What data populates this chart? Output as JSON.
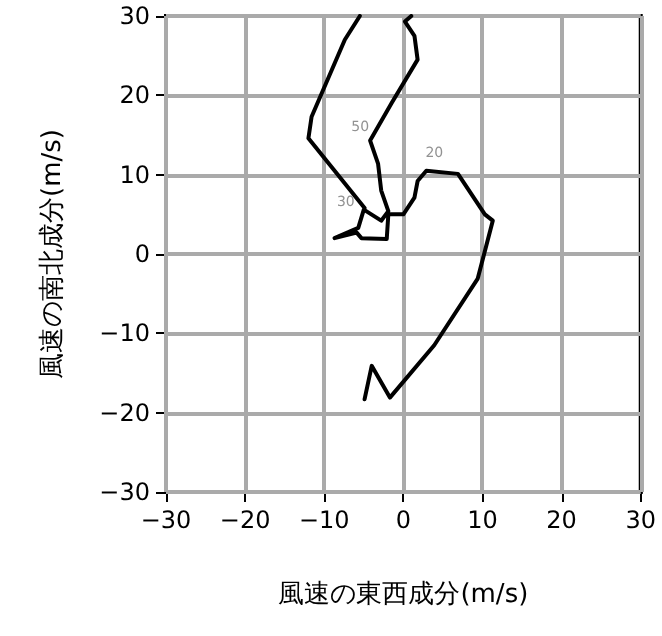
{
  "chart_data": {
    "type": "line",
    "xlabel": "風速の東西成分(m/s)",
    "ylabel": "風速の南北成分(m/s)",
    "x": [
      -4.9,
      -4.0,
      -1.7,
      3.9,
      9.4,
      11.3,
      10.3,
      6.9,
      2.9,
      1.8,
      1.4,
      0,
      -1.9,
      -2.1,
      -5.3,
      -5.9,
      -8.7,
      -5.7,
      -5.0,
      -2.8,
      -1.9,
      -2.8,
      -3.2,
      -4.2,
      -1.5,
      1.8,
      1.4,
      0.2,
      1.0,
      null,
      -5.5,
      -7.4,
      -11.6,
      -12.0,
      -4.9
    ],
    "series": [
      {
        "color": "#000000",
        "values": [
          -18.3,
          -14.1,
          -18.1,
          -11.5,
          -3.1,
          4.2,
          5.0,
          10.1,
          10.5,
          9.2,
          7.1,
          5.0,
          5.0,
          1.9,
          2.0,
          2.7,
          2.0,
          3.3,
          5.6,
          4.2,
          5.4,
          8.0,
          11.4,
          14.3,
          19.0,
          24.5,
          27.5,
          29.3,
          30,
          null,
          30,
          27.0,
          17.3,
          14.6,
          5.8
        ]
      }
    ],
    "annotations": [
      {
        "text": "50",
        "x": -4.2,
        "y": 14.3
      },
      {
        "text": "20",
        "x": 2.9,
        "y": 10.5
      },
      {
        "text": "30",
        "x": -5.0,
        "y": 5.6
      }
    ],
    "xlim": [
      -30,
      30
    ],
    "xticks": [
      -30,
      -20,
      -10,
      0,
      10,
      20,
      30
    ],
    "ylim": [
      -30,
      30
    ],
    "yticks": [
      -30,
      -20,
      -10,
      0,
      10,
      20,
      30
    ],
    "grid": true,
    "marker": "none",
    "line_style": "solid"
  }
}
